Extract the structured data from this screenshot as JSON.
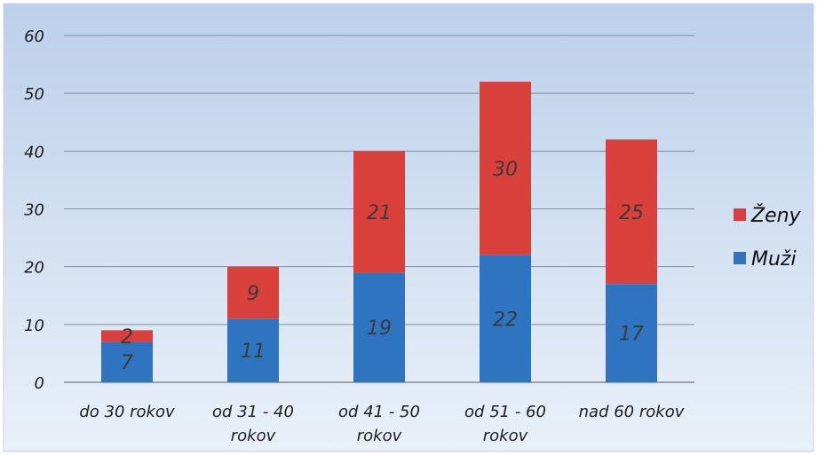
{
  "chart_data": {
    "type": "bar",
    "stacked": true,
    "categories": [
      [
        "do 30 rokov"
      ],
      [
        "od 31 - 40",
        "rokov"
      ],
      [
        "od 41 - 50",
        "rokov"
      ],
      [
        "od 51 - 60",
        "rokov"
      ],
      [
        "nad 60 rokov"
      ]
    ],
    "series": [
      {
        "name": "Muži",
        "values": [
          7,
          11,
          19,
          22,
          17
        ],
        "color": "#2e74c0"
      },
      {
        "name": "Ženy",
        "values": [
          2,
          9,
          21,
          30,
          25
        ],
        "color": "#d9403b"
      }
    ],
    "yticks": [
      "0",
      "10",
      "20",
      "30",
      "40",
      "50",
      "60"
    ],
    "ylim": [
      0,
      60
    ],
    "grid": true,
    "legend": "right",
    "legend_order": [
      "Ženy",
      "Muži"
    ]
  }
}
